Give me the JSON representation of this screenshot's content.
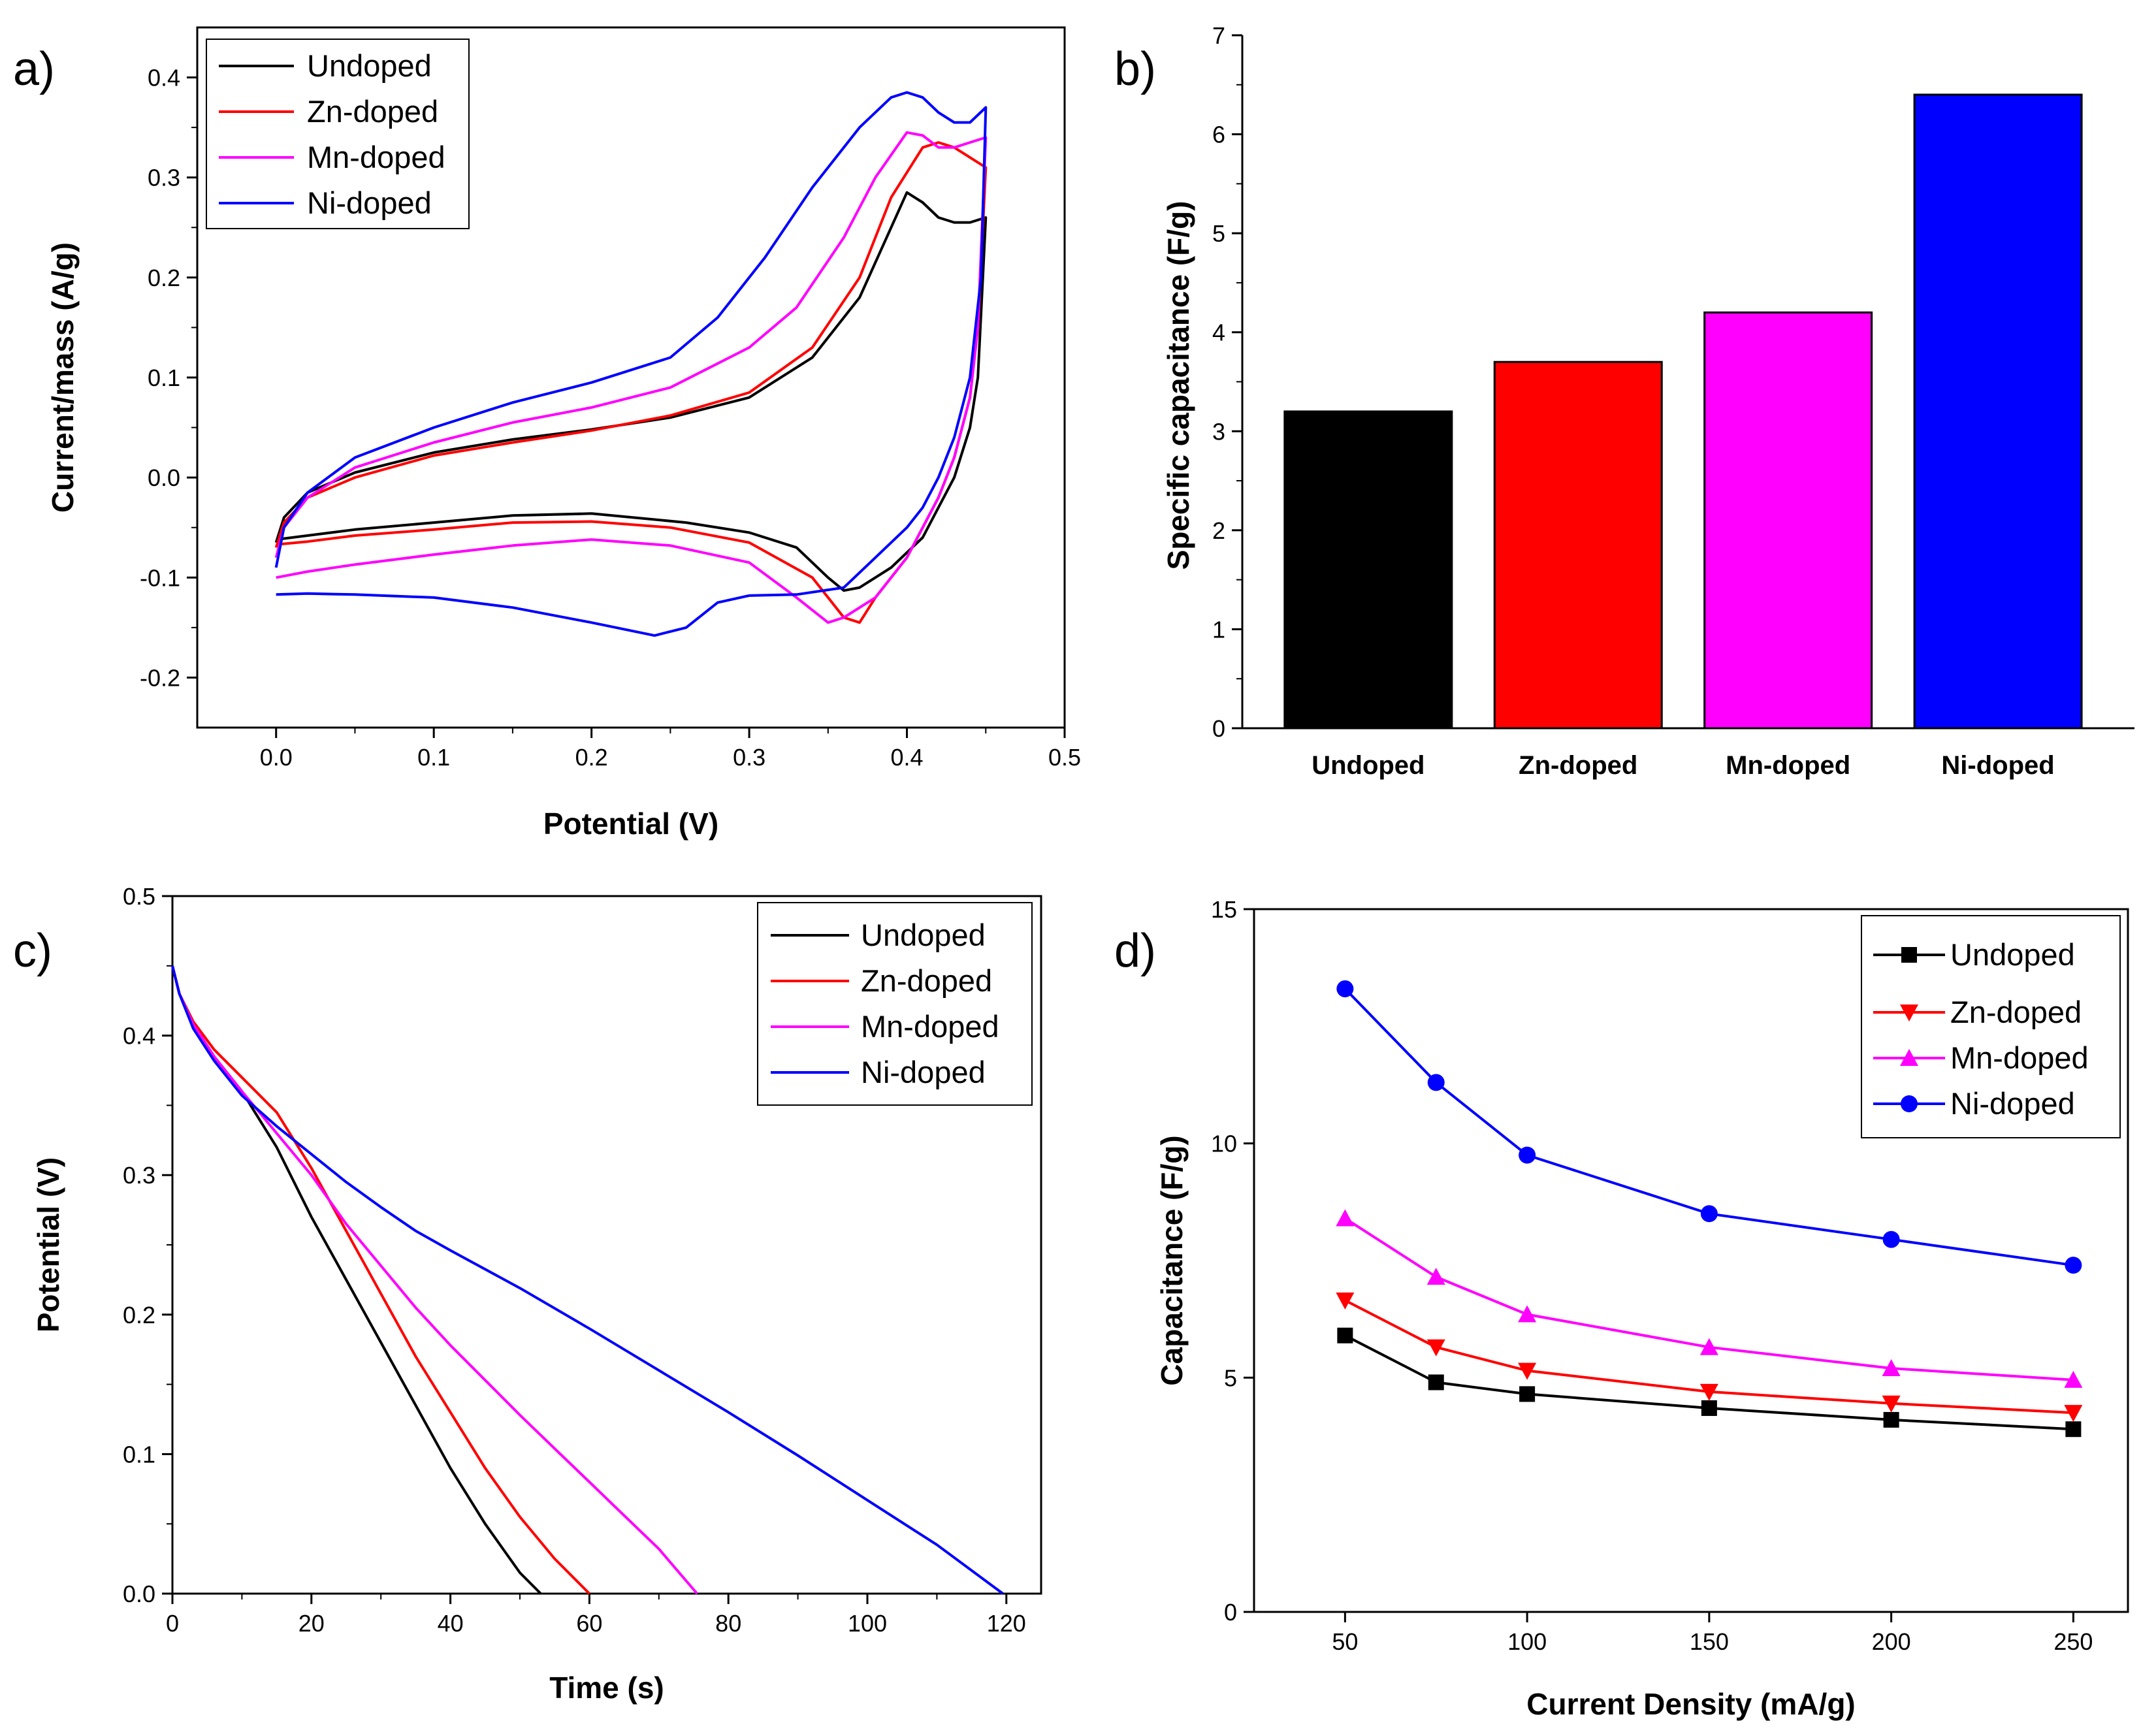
{
  "colors": {
    "Undoped": "#000000",
    "Zn-doped": "#ff0000",
    "Mn-doped": "#ff00ff",
    "Ni-doped": "#0000ff"
  },
  "chart_data": [
    {
      "id": "a",
      "panel_label": "a)",
      "type": "line",
      "title": "",
      "xlabel": "Potential (V)",
      "ylabel": "Current/mass (A/g)",
      "xlim": [
        -0.05,
        0.5
      ],
      "ylim": [
        -0.25,
        0.45
      ],
      "xticks": [
        0.0,
        0.1,
        0.2,
        0.3,
        0.4,
        0.5
      ],
      "xtick_labels": [
        "0.0",
        "0.1",
        "0.2",
        "0.3",
        "0.4",
        "0.5"
      ],
      "yticks": [
        -0.2,
        -0.1,
        0.0,
        0.1,
        0.2,
        0.3,
        0.4
      ],
      "ytick_labels": [
        "-0.2",
        "-0.1",
        "0.0",
        "0.1",
        "0.2",
        "0.3",
        "0.4"
      ],
      "legend": "top-left",
      "series": [
        {
          "name": "Undoped",
          "x": [
            0.0,
            0.005,
            0.02,
            0.05,
            0.1,
            0.15,
            0.2,
            0.25,
            0.3,
            0.34,
            0.37,
            0.39,
            0.4,
            0.41,
            0.42,
            0.43,
            0.44,
            0.45,
            0.445,
            0.44,
            0.43,
            0.42,
            0.41,
            0.39,
            0.37,
            0.36,
            0.35,
            0.33,
            0.3,
            0.26,
            0.2,
            0.15,
            0.1,
            0.05,
            0.02,
            0.0
          ],
          "y": [
            -0.065,
            -0.04,
            -0.015,
            0.005,
            0.025,
            0.038,
            0.048,
            0.06,
            0.08,
            0.12,
            0.18,
            0.25,
            0.285,
            0.275,
            0.26,
            0.255,
            0.255,
            0.26,
            0.1,
            0.05,
            0.0,
            -0.03,
            -0.06,
            -0.09,
            -0.11,
            -0.113,
            -0.1,
            -0.07,
            -0.055,
            -0.045,
            -0.036,
            -0.038,
            -0.045,
            -0.052,
            -0.058,
            -0.062
          ]
        },
        {
          "name": "Zn-doped",
          "x": [
            0.0,
            0.005,
            0.02,
            0.05,
            0.1,
            0.15,
            0.2,
            0.25,
            0.3,
            0.34,
            0.37,
            0.39,
            0.41,
            0.42,
            0.43,
            0.44,
            0.45,
            0.445,
            0.44,
            0.43,
            0.42,
            0.41,
            0.4,
            0.38,
            0.37,
            0.36,
            0.34,
            0.3,
            0.25,
            0.2,
            0.15,
            0.1,
            0.05,
            0.02,
            0.0
          ],
          "y": [
            -0.07,
            -0.045,
            -0.02,
            0.0,
            0.022,
            0.035,
            0.047,
            0.062,
            0.085,
            0.13,
            0.2,
            0.28,
            0.33,
            0.335,
            0.33,
            0.32,
            0.31,
            0.15,
            0.08,
            0.02,
            -0.02,
            -0.05,
            -0.08,
            -0.12,
            -0.145,
            -0.14,
            -0.1,
            -0.065,
            -0.05,
            -0.044,
            -0.045,
            -0.052,
            -0.058,
            -0.064,
            -0.067
          ]
        },
        {
          "name": "Mn-doped",
          "x": [
            0.0,
            0.005,
            0.02,
            0.05,
            0.1,
            0.15,
            0.2,
            0.25,
            0.3,
            0.33,
            0.36,
            0.38,
            0.4,
            0.41,
            0.42,
            0.43,
            0.44,
            0.45,
            0.445,
            0.44,
            0.43,
            0.42,
            0.41,
            0.4,
            0.38,
            0.36,
            0.35,
            0.33,
            0.3,
            0.25,
            0.2,
            0.15,
            0.1,
            0.05,
            0.02,
            0.0
          ],
          "y": [
            -0.08,
            -0.05,
            -0.02,
            0.01,
            0.035,
            0.055,
            0.07,
            0.09,
            0.13,
            0.17,
            0.24,
            0.3,
            0.345,
            0.342,
            0.33,
            0.33,
            0.335,
            0.34,
            0.15,
            0.08,
            0.02,
            -0.02,
            -0.05,
            -0.08,
            -0.12,
            -0.14,
            -0.145,
            -0.12,
            -0.085,
            -0.068,
            -0.062,
            -0.068,
            -0.077,
            -0.087,
            -0.094,
            -0.1
          ]
        },
        {
          "name": "Ni-doped",
          "x": [
            0.0,
            0.005,
            0.02,
            0.05,
            0.1,
            0.15,
            0.2,
            0.25,
            0.28,
            0.31,
            0.34,
            0.37,
            0.39,
            0.4,
            0.41,
            0.42,
            0.43,
            0.44,
            0.45,
            0.447,
            0.44,
            0.43,
            0.42,
            0.41,
            0.4,
            0.38,
            0.36,
            0.33,
            0.3,
            0.28,
            0.26,
            0.24,
            0.2,
            0.15,
            0.1,
            0.05,
            0.02,
            0.0
          ],
          "y": [
            -0.09,
            -0.05,
            -0.015,
            0.02,
            0.05,
            0.075,
            0.095,
            0.12,
            0.16,
            0.22,
            0.29,
            0.35,
            0.38,
            0.385,
            0.38,
            0.365,
            0.355,
            0.355,
            0.37,
            0.2,
            0.1,
            0.04,
            0.0,
            -0.03,
            -0.05,
            -0.08,
            -0.11,
            -0.117,
            -0.118,
            -0.125,
            -0.15,
            -0.158,
            -0.145,
            -0.13,
            -0.12,
            -0.117,
            -0.116,
            -0.117
          ]
        }
      ]
    },
    {
      "id": "b",
      "panel_label": "b)",
      "type": "bar",
      "title": "",
      "xlabel": "",
      "ylabel": "Specific capacitance (F/g)",
      "ylim": [
        0,
        7
      ],
      "yticks": [
        0,
        1,
        2,
        3,
        4,
        5,
        6,
        7
      ],
      "ytick_labels": [
        "0",
        "1",
        "2",
        "3",
        "4",
        "5",
        "6",
        "7"
      ],
      "categories": [
        "Undoped",
        "Zn-doped",
        "Mn-doped",
        "Ni-doped"
      ],
      "values": [
        3.2,
        3.7,
        4.2,
        6.4
      ]
    },
    {
      "id": "c",
      "panel_label": "c)",
      "type": "line",
      "title": "",
      "xlabel": "Time (s)",
      "ylabel": "Potential (V)",
      "xlim": [
        0,
        125
      ],
      "ylim": [
        0.0,
        0.5
      ],
      "xticks": [
        0,
        20,
        40,
        60,
        80,
        100,
        120
      ],
      "xtick_labels": [
        "0",
        "20",
        "40",
        "60",
        "80",
        "100",
        "120"
      ],
      "yticks": [
        0.0,
        0.1,
        0.2,
        0.3,
        0.4,
        0.5
      ],
      "ytick_labels": [
        "0.0",
        "0.1",
        "0.2",
        "0.3",
        "0.4",
        "0.5"
      ],
      "legend": "top-right",
      "series": [
        {
          "name": "Undoped",
          "x": [
            0,
            1,
            3,
            6,
            10,
            15,
            20,
            25,
            30,
            35,
            40,
            45,
            50,
            53
          ],
          "y": [
            0.45,
            0.43,
            0.408,
            0.385,
            0.36,
            0.32,
            0.27,
            0.225,
            0.18,
            0.135,
            0.09,
            0.05,
            0.015,
            0.0
          ]
        },
        {
          "name": "Zn-doped",
          "x": [
            0,
            1,
            3,
            6,
            10,
            15,
            20,
            25,
            30,
            35,
            40,
            45,
            50,
            55,
            60
          ],
          "y": [
            0.45,
            0.43,
            0.41,
            0.39,
            0.37,
            0.345,
            0.305,
            0.26,
            0.215,
            0.17,
            0.13,
            0.09,
            0.055,
            0.025,
            0.0
          ]
        },
        {
          "name": "Mn-doped",
          "x": [
            0,
            1,
            3,
            6,
            10,
            15,
            20,
            25,
            30,
            35,
            40,
            45,
            50,
            55,
            60,
            65,
            70,
            75.5
          ],
          "y": [
            0.45,
            0.43,
            0.408,
            0.385,
            0.36,
            0.33,
            0.3,
            0.265,
            0.235,
            0.205,
            0.178,
            0.153,
            0.128,
            0.104,
            0.08,
            0.056,
            0.032,
            0.0
          ]
        },
        {
          "name": "Ni-doped",
          "x": [
            0,
            1,
            3,
            6,
            10,
            15,
            20,
            25,
            30,
            35,
            40,
            50,
            60,
            70,
            80,
            90,
            100,
            110,
            119.5
          ],
          "y": [
            0.45,
            0.43,
            0.405,
            0.382,
            0.357,
            0.335,
            0.315,
            0.295,
            0.277,
            0.26,
            0.246,
            0.219,
            0.19,
            0.16,
            0.13,
            0.099,
            0.067,
            0.035,
            0.0
          ]
        }
      ]
    },
    {
      "id": "d",
      "panel_label": "d)",
      "type": "line",
      "title": "",
      "xlabel": "Current Density (mA/g)",
      "ylabel": "Capacitance (F/g)",
      "xlim": [
        25,
        265
      ],
      "ylim": [
        0,
        15
      ],
      "xticks": [
        50,
        100,
        150,
        200,
        250
      ],
      "xtick_labels": [
        "50",
        "100",
        "150",
        "200",
        "250"
      ],
      "yticks": [
        0,
        5,
        10,
        15
      ],
      "ytick_labels": [
        "0",
        "5",
        "10",
        "15"
      ],
      "legend": "top-right",
      "series": [
        {
          "name": "Undoped",
          "marker": "square",
          "x": [
            50,
            75,
            100,
            150,
            200,
            250
          ],
          "y": [
            5.9,
            4.9,
            4.65,
            4.35,
            4.1,
            3.9
          ]
        },
        {
          "name": "Zn-doped",
          "marker": "triangle-down",
          "x": [
            50,
            75,
            100,
            150,
            200,
            250
          ],
          "y": [
            6.65,
            5.65,
            5.15,
            4.7,
            4.45,
            4.25
          ]
        },
        {
          "name": "Mn-doped",
          "marker": "triangle-up",
          "x": [
            50,
            75,
            100,
            150,
            200,
            250
          ],
          "y": [
            8.4,
            7.15,
            6.35,
            5.65,
            5.2,
            4.95
          ]
        },
        {
          "name": "Ni-doped",
          "marker": "circle",
          "x": [
            50,
            75,
            100,
            150,
            200,
            250
          ],
          "y": [
            13.3,
            11.3,
            9.75,
            8.5,
            7.95,
            7.4
          ]
        }
      ]
    }
  ]
}
